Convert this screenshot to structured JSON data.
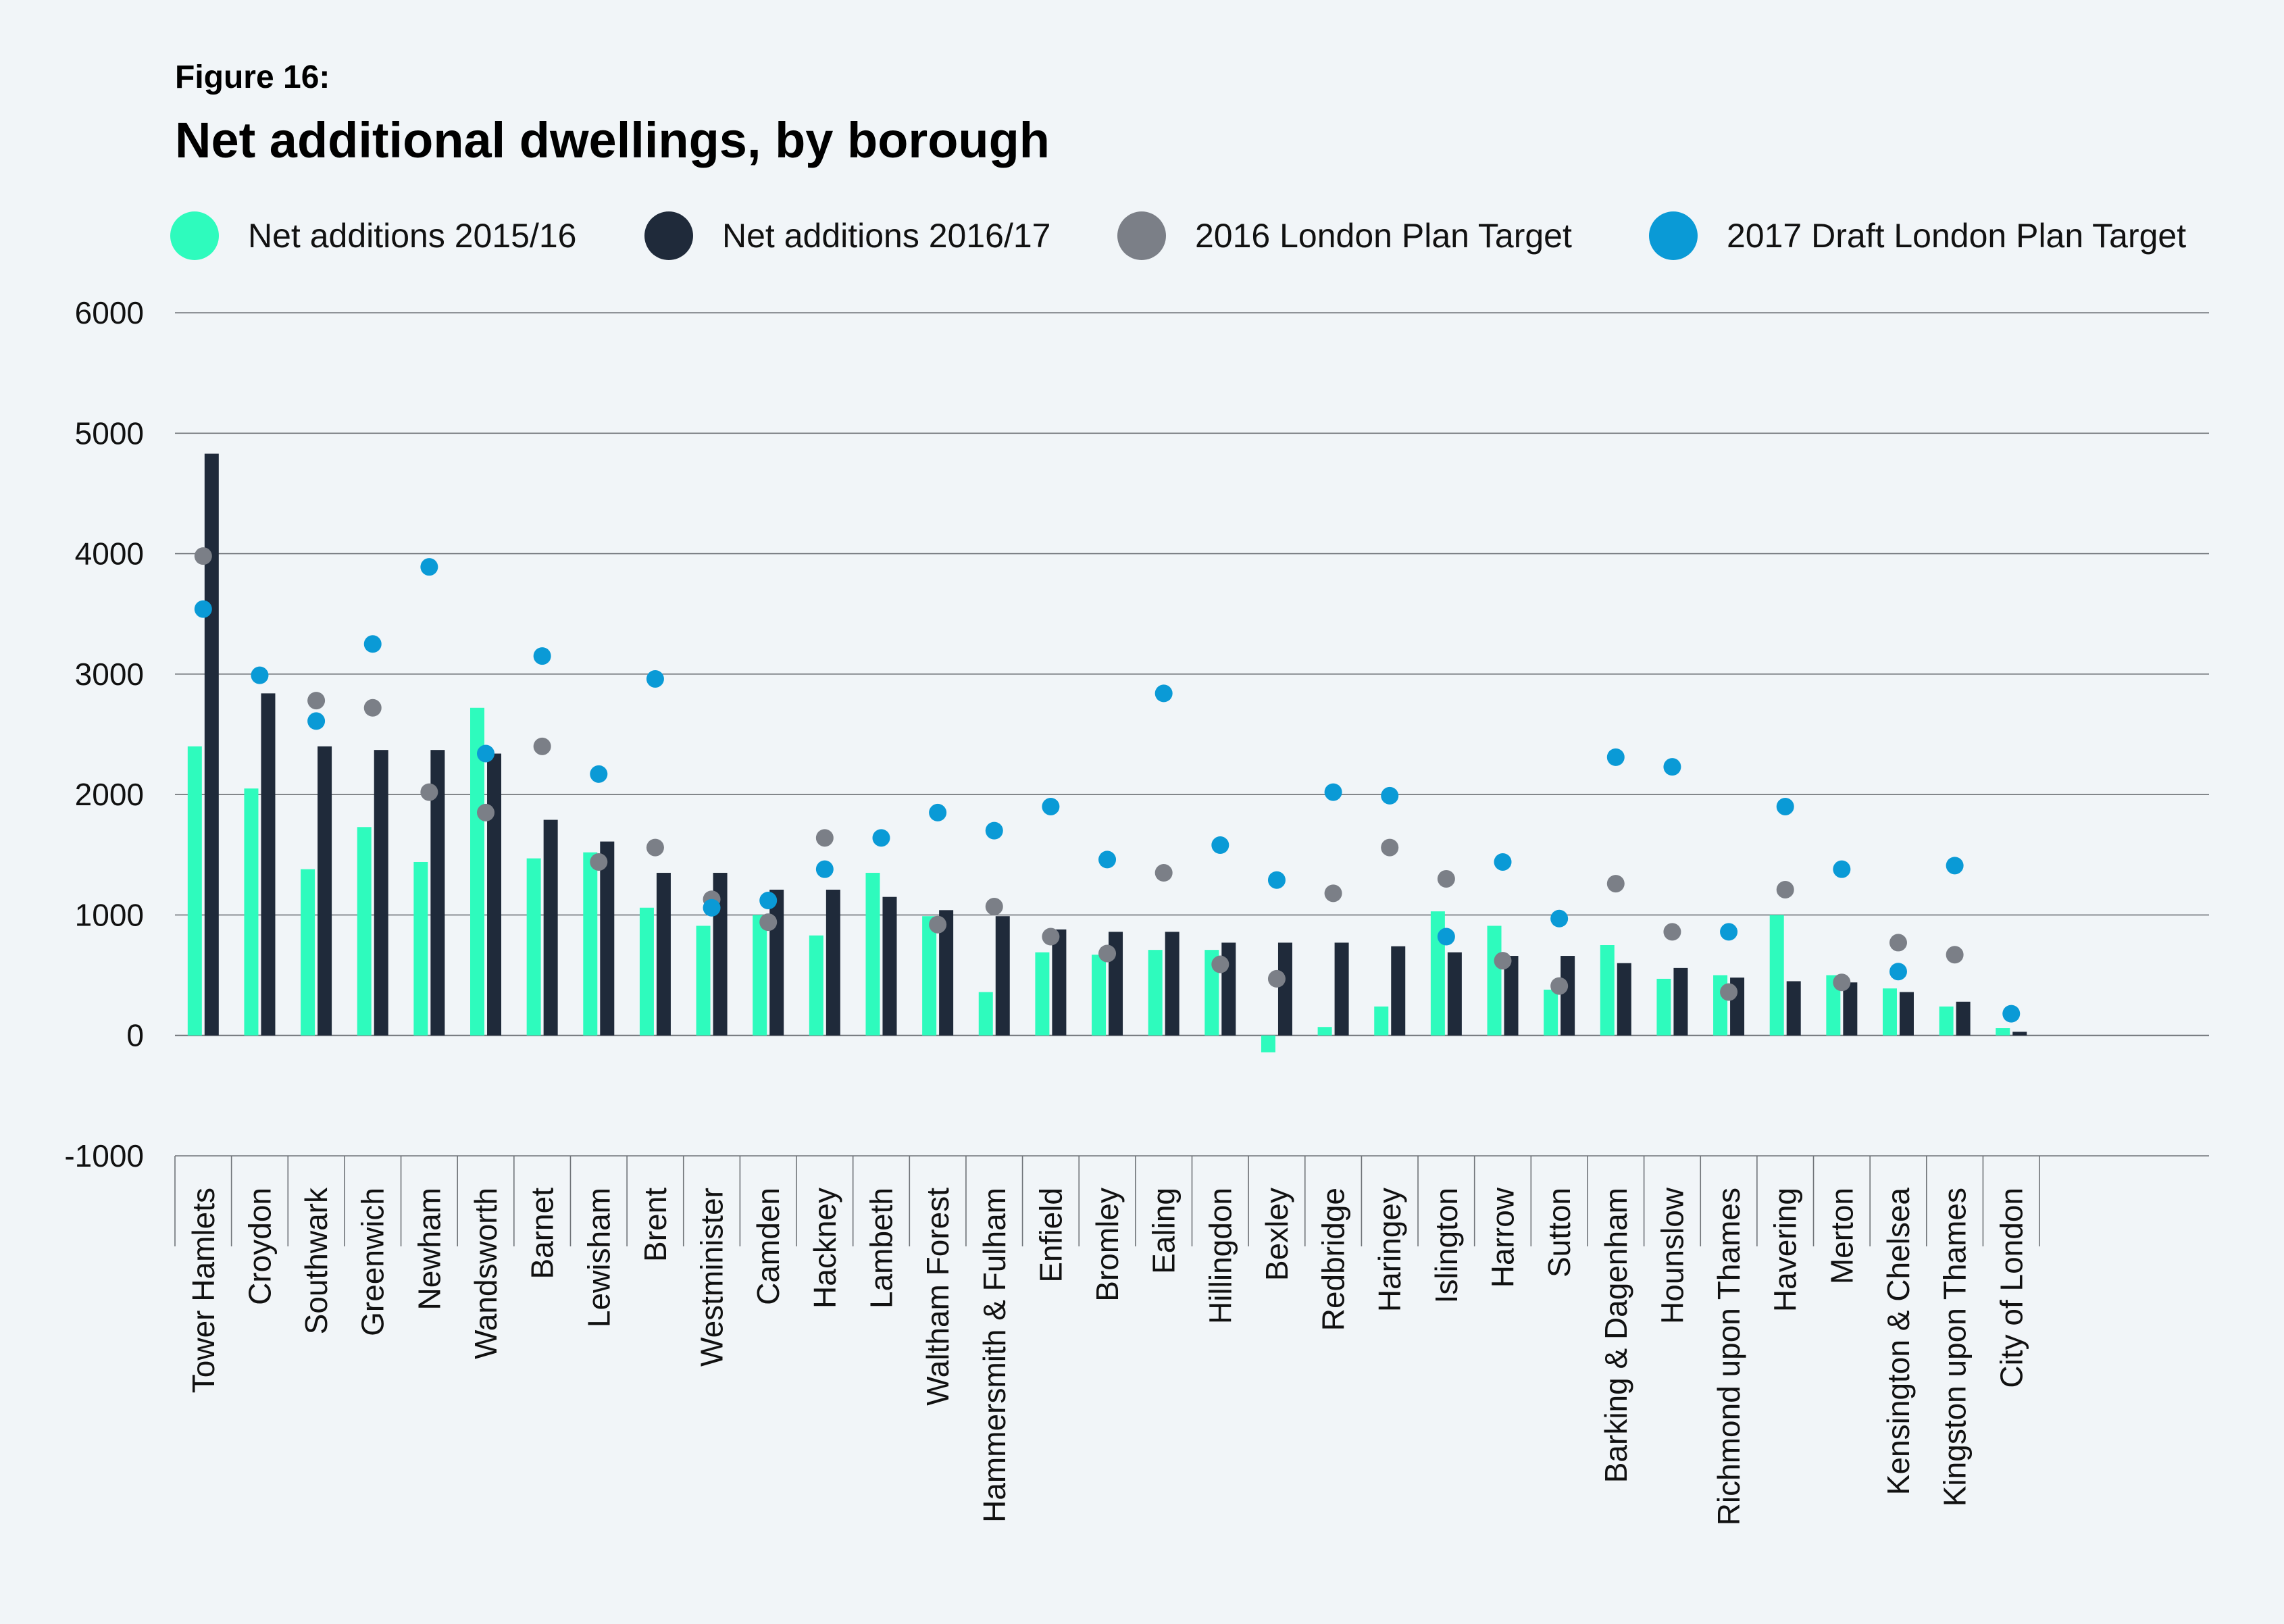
{
  "colors": {
    "background": "#f1f5f8",
    "series_2015": "#2efbbd",
    "series_2016": "#1f2a3a",
    "target_2016": "#7b7f87",
    "target_2017": "#0a9ad6",
    "grid": "#6f7378",
    "text": "#111111"
  },
  "chart_data": {
    "type": "bar",
    "figure_label": "Figure 16:",
    "title": "Net additional dwellings, by borough",
    "xlabel": "",
    "ylabel": "",
    "ylim": [
      -1000,
      6000
    ],
    "yticks": [
      "6000",
      "5000",
      "4000",
      "3000",
      "2000",
      "1000",
      "0",
      "-1000"
    ],
    "legend_position": "top",
    "legend": [
      {
        "label": "Net additions 2015/16",
        "color_key": "series_2015"
      },
      {
        "label": "Net additions 2016/17",
        "color_key": "series_2016"
      },
      {
        "label": "2016 London Plan Target",
        "color_key": "target_2016"
      },
      {
        "label": "2017 Draft London Plan Target",
        "color_key": "target_2017"
      }
    ],
    "categories": [
      "Tower Hamlets",
      "Croydon",
      "Southwark",
      "Greenwich",
      "Newham",
      "Wandsworth",
      "Barnet",
      "Lewisham",
      "Brent",
      "Westminister",
      "Camden",
      "Hackney",
      "Lambeth",
      "Waltham Forest",
      "Hammersmith & Fulham",
      "Enfield",
      "Bromley",
      "Ealing",
      "Hillingdon",
      "Bexley",
      "Redbridge",
      "Haringey",
      "Islington",
      "Harrow",
      "Sutton",
      "Barking & Dagenham",
      "Hounslow",
      "Richmond upon Thames",
      "Havering",
      "Merton",
      "Kensington & Chelsea",
      "Kingston upon Thames",
      "City of London"
    ],
    "series": [
      {
        "name": "Net additions 2015/16",
        "kind": "bar",
        "color_key": "series_2015",
        "values": [
          2400,
          2050,
          1380,
          1730,
          1440,
          2720,
          1470,
          1520,
          1060,
          910,
          1000,
          830,
          1350,
          990,
          360,
          690,
          670,
          710,
          710,
          -140,
          70,
          240,
          1030,
          910,
          380,
          750,
          470,
          500,
          1000,
          500,
          390,
          240,
          60
        ]
      },
      {
        "name": "Net additions 2016/17",
        "kind": "bar",
        "color_key": "series_2016",
        "values": [
          4830,
          2840,
          2400,
          2370,
          2370,
          2340,
          1790,
          1610,
          1350,
          1350,
          1210,
          1210,
          1150,
          1040,
          990,
          880,
          860,
          860,
          770,
          770,
          770,
          740,
          690,
          660,
          660,
          600,
          560,
          480,
          450,
          440,
          360,
          280,
          30
        ]
      },
      {
        "name": "2016 London Plan Target",
        "kind": "dot",
        "color_key": "target_2016",
        "values": [
          3980,
          null,
          2780,
          2720,
          2020,
          1850,
          2400,
          1440,
          1560,
          1130,
          940,
          1640,
          null,
          920,
          1070,
          820,
          680,
          1350,
          590,
          470,
          1180,
          1560,
          1300,
          620,
          410,
          1260,
          860,
          360,
          1210,
          440,
          770,
          670,
          null
        ]
      },
      {
        "name": "2017 Draft London Plan Target",
        "kind": "dot",
        "color_key": "target_2017",
        "values": [
          3540,
          2990,
          2610,
          3250,
          3890,
          2340,
          3150,
          2170,
          2960,
          1060,
          1120,
          1380,
          1640,
          1850,
          1700,
          1900,
          1460,
          2840,
          1580,
          1290,
          2020,
          1990,
          820,
          1440,
          970,
          2310,
          2230,
          860,
          1900,
          1380,
          530,
          1410,
          180
        ]
      }
    ]
  }
}
